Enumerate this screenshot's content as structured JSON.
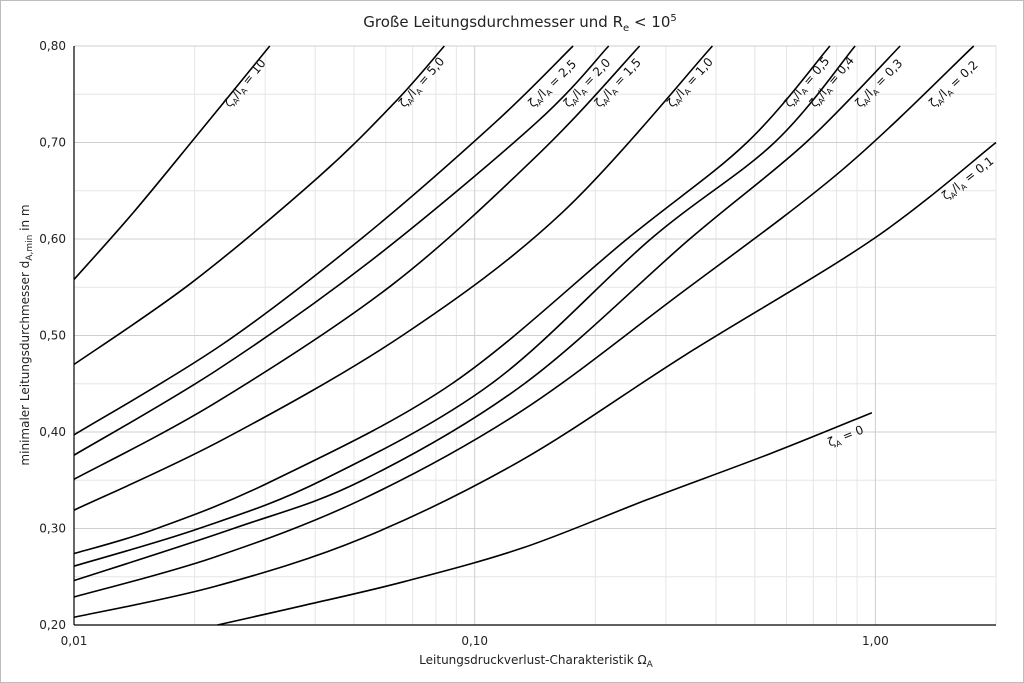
{
  "chart_data": {
    "type": "line",
    "title_main": "Große Leitungsdurchmesser und R",
    "title_sub": "e",
    "title_rel": " < 10",
    "title_sup": "5",
    "xlabel_main": "Leitungsdruckverlust-Charakteristik Ω",
    "xlabel_sub": "A",
    "ylabel_main": "minimaler Leitungsdurchmesser d",
    "ylabel_sub": "A,min",
    "ylabel_unit": " in m",
    "x_scale": "log",
    "xlim": [
      0.01,
      2.0
    ],
    "ylim": [
      0.2,
      0.8
    ],
    "grid": true,
    "x_ticks": [
      {
        "value": 0.01,
        "label": "0,01"
      },
      {
        "value": 0.1,
        "label": "0,10"
      },
      {
        "value": 1.0,
        "label": "1,00"
      }
    ],
    "y_ticks": [
      {
        "value": 0.2,
        "label": "0,20"
      },
      {
        "value": 0.3,
        "label": "0,30"
      },
      {
        "value": 0.4,
        "label": "0,40"
      },
      {
        "value": 0.5,
        "label": "0,50"
      },
      {
        "value": 0.6,
        "label": "0,60"
      },
      {
        "value": 0.7,
        "label": "0,70"
      },
      {
        "value": 0.8,
        "label": "0,80"
      }
    ],
    "series": [
      {
        "name": "ζA/lA = 10",
        "label_greek": "ζ",
        "label_sub1": "A",
        "label_mid": "/l",
        "label_sub2": "A",
        "label_tail": " = 10",
        "points": [
          [
            0.01,
            0.558
          ],
          [
            0.0141,
            0.628
          ],
          [
            0.0205,
            0.71
          ],
          [
            0.0308,
            0.8
          ]
        ]
      },
      {
        "name": "ζA/lA = 5,0",
        "label_greek": "ζ",
        "label_sub1": "A",
        "label_mid": "/l",
        "label_sub2": "A",
        "label_tail": " = 5,0",
        "points": [
          [
            0.01,
            0.47
          ],
          [
            0.0197,
            0.555
          ],
          [
            0.0407,
            0.664
          ],
          [
            0.063,
            0.741
          ],
          [
            0.084,
            0.8
          ]
        ]
      },
      {
        "name": "ζA/lA = 2,5",
        "label_greek": "ζ",
        "label_sub1": "A",
        "label_mid": "/l",
        "label_sub2": "A",
        "label_tail": " = 2,5",
        "points": [
          [
            0.01,
            0.397
          ],
          [
            0.0233,
            0.49
          ],
          [
            0.052,
            0.6
          ],
          [
            0.112,
            0.72
          ],
          [
            0.176,
            0.8
          ]
        ]
      },
      {
        "name": "ζA/lA = 2,0",
        "label_greek": "ζ",
        "label_sub1": "A",
        "label_mid": "/l",
        "label_sub2": "A",
        "label_tail": " = 2,0",
        "points": [
          [
            0.01,
            0.376
          ],
          [
            0.0227,
            0.464
          ],
          [
            0.0545,
            0.576
          ],
          [
            0.142,
            0.72
          ],
          [
            0.216,
            0.8
          ]
        ]
      },
      {
        "name": "ζA/lA = 1,5",
        "label_greek": "ζ",
        "label_sub1": "A",
        "label_mid": "/l",
        "label_sub2": "A",
        "label_tail": " = 1,5",
        "points": [
          [
            0.01,
            0.351
          ],
          [
            0.0227,
            0.431
          ],
          [
            0.062,
            0.552
          ],
          [
            0.146,
            0.69
          ],
          [
            0.258,
            0.8
          ]
        ]
      },
      {
        "name": "ζA/lA = 1,0",
        "label_greek": "ζ",
        "label_sub1": "A",
        "label_mid": "/l",
        "label_sub2": "A",
        "label_tail": " = 1,0",
        "points": [
          [
            0.01,
            0.319
          ],
          [
            0.0235,
            0.392
          ],
          [
            0.066,
            0.5
          ],
          [
            0.165,
            0.627
          ],
          [
            0.392,
            0.8
          ]
        ]
      },
      {
        "name": "ζA/lA = 0,5",
        "label_greek": "ζ",
        "label_sub1": "A",
        "label_mid": "/l",
        "label_sub2": "A",
        "label_tail": " = 0,5",
        "points": [
          [
            0.01,
            0.274
          ],
          [
            0.0161,
            0.3
          ],
          [
            0.0315,
            0.35
          ],
          [
            0.0877,
            0.45
          ],
          [
            0.24,
            0.6
          ],
          [
            0.478,
            0.7
          ],
          [
            0.77,
            0.8
          ]
        ]
      },
      {
        "name": "ζA/lA = 0,4",
        "label_greek": "ζ",
        "label_sub1": "A",
        "label_mid": "/l",
        "label_sub2": "A",
        "label_tail": " = 0,4",
        "points": [
          [
            0.01,
            0.261
          ],
          [
            0.0205,
            0.3
          ],
          [
            0.0416,
            0.35
          ],
          [
            0.11,
            0.45
          ],
          [
            0.275,
            0.6
          ],
          [
            0.56,
            0.7
          ],
          [
            0.89,
            0.8
          ]
        ]
      },
      {
        "name": "ζA/lA = 0,3",
        "label_greek": "ζ",
        "label_sub1": "A",
        "label_mid": "/l",
        "label_sub2": "A",
        "label_tail": " = 0,3",
        "points": [
          [
            0.01,
            0.246
          ],
          [
            0.025,
            0.3
          ],
          [
            0.0525,
            0.35
          ],
          [
            0.133,
            0.45
          ],
          [
            0.344,
            0.6
          ],
          [
            0.671,
            0.7
          ],
          [
            1.153,
            0.8
          ]
        ]
      },
      {
        "name": "ζA/lA = 0,2",
        "label_greek": "ζ",
        "label_sub1": "A",
        "label_mid": "/l",
        "label_sub2": "A",
        "label_tail": " = 0,2",
        "points": [
          [
            0.01,
            0.229
          ],
          [
            0.0223,
            0.27
          ],
          [
            0.0522,
            0.33
          ],
          [
            0.129,
            0.42
          ],
          [
            0.318,
            0.54
          ],
          [
            0.818,
            0.67
          ],
          [
            1.76,
            0.8
          ]
        ]
      },
      {
        "name": "ζA/lA = 0,1",
        "label_greek": "ζ",
        "label_sub1": "A",
        "label_mid": "/l",
        "label_sub2": "A",
        "label_tail": " = 0,1",
        "points": [
          [
            0.01,
            0.208
          ],
          [
            0.0225,
            0.24
          ],
          [
            0.0525,
            0.29
          ],
          [
            0.13,
            0.37
          ],
          [
            0.336,
            0.48
          ],
          [
            0.988,
            0.6
          ],
          [
            2.0,
            0.7
          ]
        ]
      },
      {
        "name": "ζA = 0",
        "label_greek": "ζ",
        "label_sub1": "A",
        "label_mid": "",
        "label_sub2": "",
        "label_tail": " = 0",
        "points": [
          [
            0.0228,
            0.2
          ],
          [
            0.0372,
            0.22
          ],
          [
            0.0668,
            0.245
          ],
          [
            0.132,
            0.28
          ],
          [
            0.27,
            0.33
          ],
          [
            0.55,
            0.378
          ],
          [
            0.98,
            0.42
          ]
        ]
      }
    ]
  }
}
